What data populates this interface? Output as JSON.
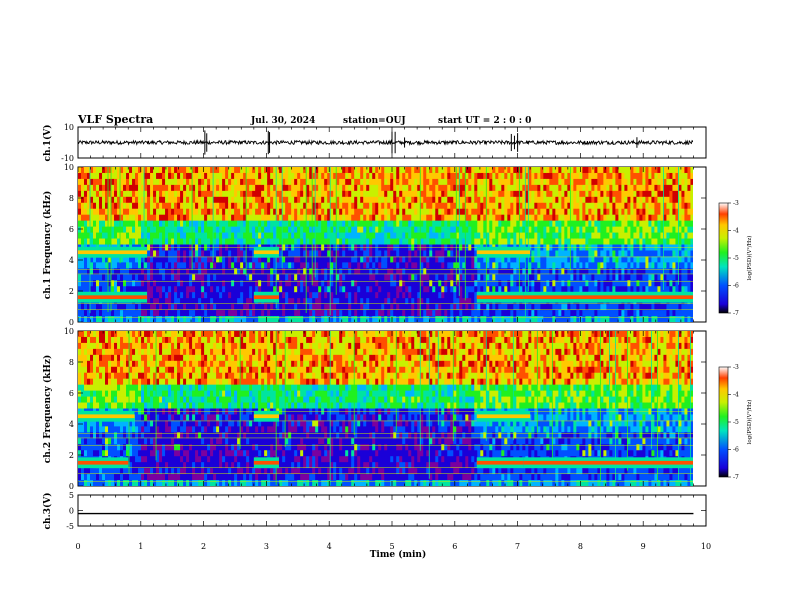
{
  "header": {
    "title": "VLF Spectra",
    "date": "Jul. 30, 2024",
    "station": "station=OUJ",
    "start": "start UT =  2 : 0 : 0"
  },
  "colors": {
    "colormap": [
      "#7a00a0",
      "#1a00d8",
      "#0050ff",
      "#00b4ff",
      "#00e4a0",
      "#20f020",
      "#c8f000",
      "#ffc800",
      "#ff5000",
      "#d00000"
    ],
    "waveform": "#000000",
    "axes": "#000000"
  },
  "chart_data": [
    {
      "type": "line",
      "id": "ch1-waveform",
      "ylabel": "ch.1(V)",
      "ylim": [
        -10,
        10
      ],
      "yticks": [
        "10",
        "-10"
      ],
      "xlim": [
        0,
        10
      ],
      "baseline": 0,
      "noise_amplitude": 1.2,
      "spikes_x": [
        2.02,
        2.05,
        3.03,
        3.05,
        5.0,
        5.05,
        5.2,
        6.9,
        6.95,
        7.0,
        8.9
      ]
    },
    {
      "type": "heatmap",
      "id": "ch1-spectrogram",
      "ylabel": "ch.1 Frequency (kHz)",
      "ylim": [
        0,
        10
      ],
      "yticks": [
        "0",
        "2",
        "4",
        "6",
        "8",
        "10"
      ],
      "xlim": [
        0,
        10
      ],
      "colorbar": {
        "label": "log(PSD)(V²/Hz)",
        "range": [
          -7,
          -3
        ],
        "ticks": [
          "-3",
          "-4",
          "-5",
          "-6",
          "-7"
        ]
      },
      "quiet_intervals_min": [
        [
          1.0,
          6.3
        ]
      ],
      "bands_khz": [
        {
          "f": 1.6,
          "segments": [
            [
              0,
              1.1
            ],
            [
              2.8,
              3.2
            ],
            [
              6.35,
              7.1
            ],
            [
              7.1,
              9.8
            ]
          ]
        },
        {
          "f": 4.5,
          "segments": [
            [
              0,
              1.1
            ],
            [
              2.8,
              3.2
            ],
            [
              6.35,
              7.2
            ]
          ]
        }
      ],
      "lines_khz": [
        0.3,
        0.8,
        1.2,
        2.6,
        3.1,
        3.4,
        4.2,
        4.8
      ]
    },
    {
      "type": "heatmap",
      "id": "ch2-spectrogram",
      "ylabel": "ch.2 Frequency (kHz)",
      "ylim": [
        0,
        10
      ],
      "yticks": [
        "0",
        "2",
        "4",
        "6",
        "8",
        "10"
      ],
      "xlim": [
        0,
        10
      ],
      "colorbar": {
        "label": "log(PSD)(V²/Hz)",
        "range": [
          -7,
          -3
        ],
        "ticks": [
          "-3",
          "-4",
          "-5",
          "-6",
          "-7"
        ]
      },
      "quiet_intervals_min": [
        [
          1.0,
          6.3
        ]
      ],
      "bands_khz": [
        {
          "f": 1.5,
          "segments": [
            [
              0,
              0.8
            ],
            [
              2.8,
              3.2
            ],
            [
              6.35,
              7.1
            ],
            [
              7.1,
              9.8
            ]
          ]
        },
        {
          "f": 4.5,
          "segments": [
            [
              0,
              0.9
            ],
            [
              2.8,
              3.2
            ],
            [
              6.35,
              7.2
            ]
          ]
        }
      ],
      "lines_khz": [
        0.3,
        0.8,
        1.2,
        2.6,
        3.1,
        3.4,
        4.2,
        4.8
      ]
    },
    {
      "type": "line",
      "id": "ch3-waveform",
      "ylabel": "ch.3(V)",
      "ylim": [
        -5,
        5
      ],
      "yticks": [
        "5",
        "0",
        "-5"
      ],
      "xlim": [
        0,
        10
      ],
      "baseline": -1,
      "noise_amplitude": 0
    }
  ],
  "xaxis": {
    "label": "Time (min)",
    "ticks": [
      "0",
      "1",
      "2",
      "3",
      "4",
      "5",
      "6",
      "7",
      "8",
      "9",
      "10"
    ]
  }
}
